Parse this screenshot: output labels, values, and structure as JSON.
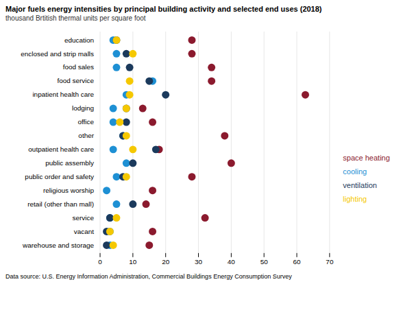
{
  "chart_data": {
    "type": "scatter",
    "orientation": "horizontal",
    "title": "Major fuels energy intensities by principal building activity and selected end uses (2018)",
    "subtitle": "thousand Brtitish thermal units per square foot",
    "caption": "Data source: U.S. Energy Information Administration, Commercial Buildings Energy Consumption Survey",
    "categories": [
      "education",
      "enclosed and strip malls",
      "food sales",
      "food service",
      "inpatient health care",
      "lodging",
      "office",
      "other",
      "outpatient health care",
      "public assembly",
      "public order and safety",
      "religious worship",
      "retail (other than mall)",
      "service",
      "vacant",
      "warehouse and storage"
    ],
    "series": [
      {
        "name": "space heating",
        "color": "#8B1A2E",
        "values": [
          28,
          28,
          34,
          34,
          62.6,
          13,
          16,
          38,
          18,
          40,
          28,
          16,
          14,
          32,
          16,
          15
        ]
      },
      {
        "name": "cooling",
        "color": "#1E90D4",
        "values": [
          4,
          5,
          5,
          16,
          8,
          4,
          4,
          7,
          4,
          8,
          5,
          2,
          5,
          3,
          3,
          3
        ]
      },
      {
        "name": "ventilation",
        "color": "#1B3A5C",
        "values": [
          5,
          8,
          9,
          15,
          20,
          8,
          8,
          7,
          17,
          10,
          7,
          null,
          10,
          3,
          2,
          2
        ]
      },
      {
        "name": "lighting",
        "color": "#F5C800",
        "values": [
          5,
          10,
          null,
          9,
          9,
          8,
          6,
          8,
          10,
          null,
          8,
          null,
          null,
          5,
          3,
          4
        ]
      }
    ],
    "xlim": [
      0,
      70
    ],
    "xticks": [
      0,
      10,
      20,
      30,
      40,
      50,
      60,
      70
    ],
    "grid": true,
    "legend": "right"
  }
}
